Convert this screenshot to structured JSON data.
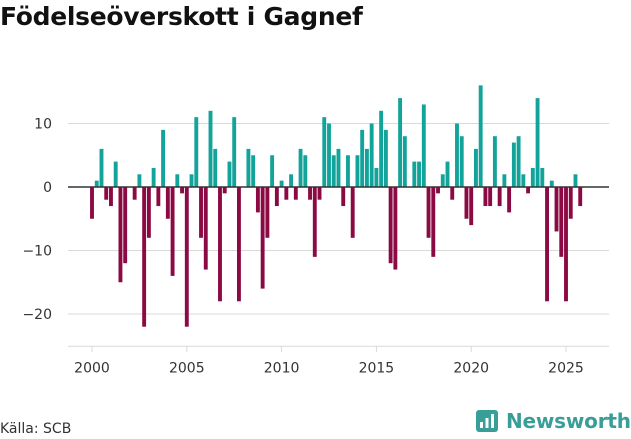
{
  "title": "Födelseöverskott i Gagnef",
  "source": "Källa: SCB",
  "brand": {
    "name": "Newsworthy",
    "icon": "newsworthy-logo-icon"
  },
  "colors": {
    "positive": "#12a39b",
    "negative": "#8c0a43",
    "grid": "#d9d9d9",
    "zero_line": "#333333"
  },
  "chart_data": {
    "type": "bar",
    "title": "Födelseöverskott i Gagnef",
    "xlabel": "",
    "ylabel": "",
    "x_start": 2000.0,
    "x_step": 0.25,
    "x_unit": "quarter",
    "xlim": [
      1998.2,
      2027.2
    ],
    "ylim": [
      -25,
      17
    ],
    "yticks": [
      10,
      0,
      -10,
      -20
    ],
    "ytick_labels": [
      "10",
      "0",
      "−10",
      "−20"
    ],
    "xticks": [
      2000,
      2005,
      2010,
      2015,
      2020,
      2025
    ],
    "xtick_labels": [
      "2000",
      "2005",
      "2010",
      "2015",
      "2020",
      "2025"
    ],
    "values": [
      -5,
      1,
      6,
      -2,
      -3,
      4,
      -15,
      -12,
      0,
      -2,
      2,
      -22,
      -8,
      3,
      -3,
      9,
      -5,
      -14,
      2,
      -1,
      -22,
      2,
      11,
      -8,
      -13,
      12,
      6,
      -18,
      -1,
      4,
      11,
      -18,
      0,
      6,
      5,
      -4,
      -16,
      -8,
      5,
      -3,
      1,
      -2,
      2,
      -2,
      6,
      5,
      -2,
      -11,
      -2,
      11,
      10,
      5,
      6,
      -3,
      5,
      -8,
      5,
      9,
      6,
      10,
      3,
      12,
      9,
      -12,
      -13,
      14,
      8,
      0,
      4,
      4,
      13,
      -8,
      -11,
      -1,
      2,
      4,
      -2,
      10,
      8,
      -5,
      -6,
      6,
      16,
      -3,
      -3,
      8,
      -3,
      2,
      -4,
      7,
      8,
      2,
      -1,
      3,
      14,
      3,
      -18,
      1,
      -7,
      -11,
      -18,
      -5,
      2,
      -3
    ]
  }
}
